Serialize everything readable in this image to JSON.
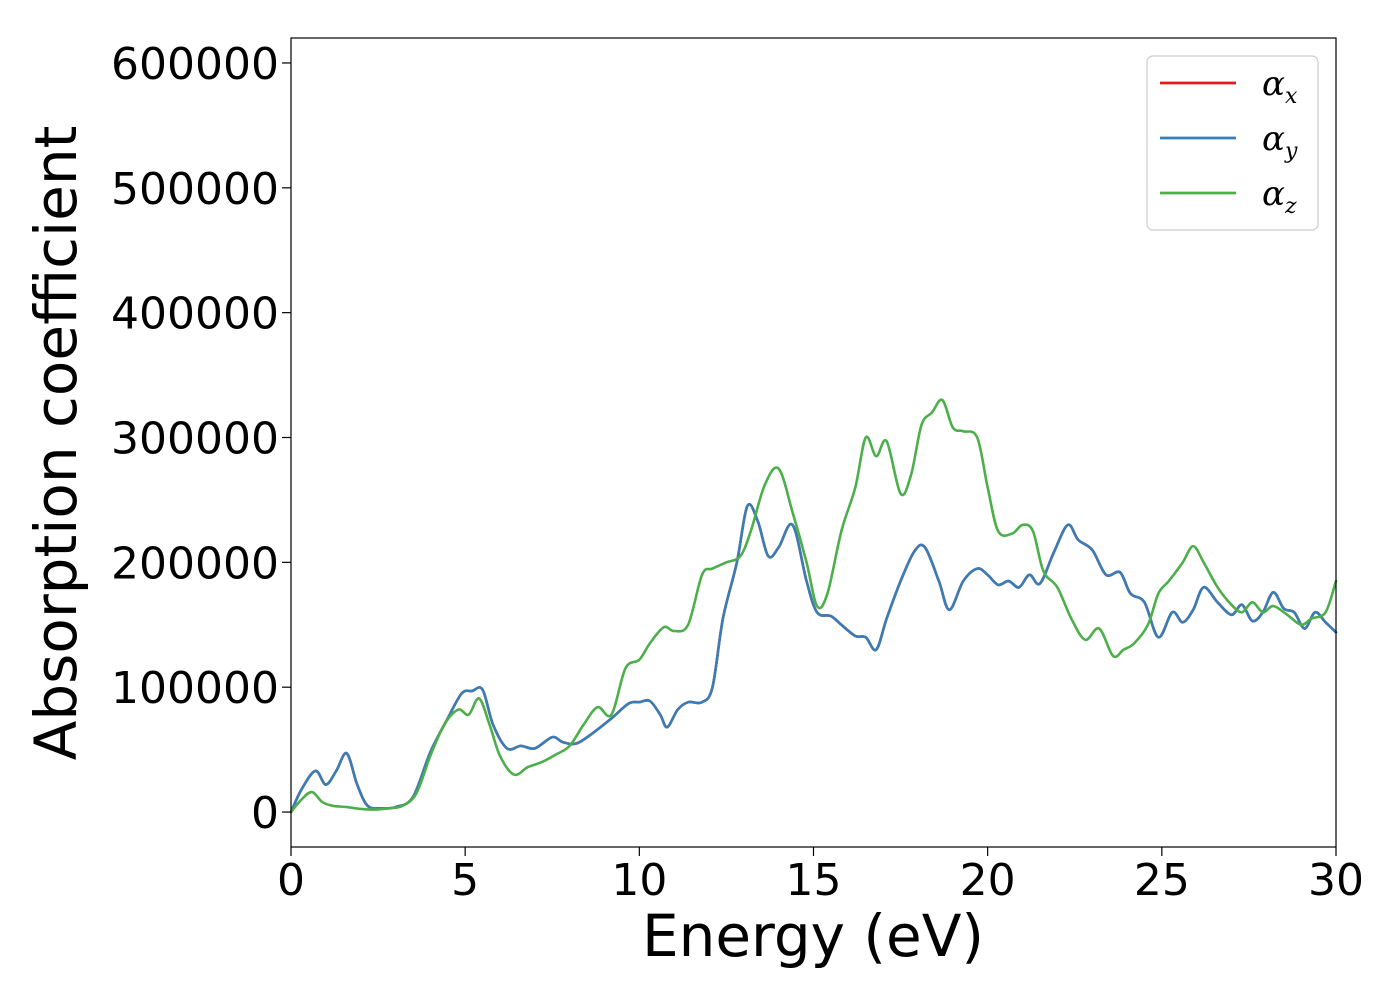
{
  "chart_data": {
    "type": "line",
    "title": "",
    "xlabel": "Energy (eV)",
    "ylabel": "Absorption coefficient",
    "xlim": [
      0,
      30
    ],
    "ylim": [
      -28000,
      620000
    ],
    "xticks": [
      0,
      5,
      10,
      15,
      20,
      25,
      30
    ],
    "xtick_labels": [
      "0",
      "5",
      "10",
      "15",
      "20",
      "25",
      "30"
    ],
    "yticks": [
      0,
      100000,
      200000,
      300000,
      400000,
      500000,
      600000
    ],
    "ytick_labels": [
      "0",
      "100000",
      "200000",
      "300000",
      "400000",
      "500000",
      "600000"
    ],
    "grid": false,
    "legend_position": "top-right",
    "series": [
      {
        "name": "α",
        "subscript": "x",
        "color": "#e41a1c",
        "x": [
          0,
          0.3,
          0.7,
          1.0,
          1.3,
          1.6,
          1.9,
          2.2,
          2.6,
          3.0,
          3.5,
          4.0,
          4.5,
          4.9,
          5.2,
          5.5,
          5.8,
          6.2,
          6.6,
          7.0,
          7.5,
          7.8,
          8.2,
          8.7,
          9.2,
          9.7,
          10.0,
          10.3,
          10.6,
          10.8,
          11.1,
          11.4,
          11.8,
          12.1,
          12.4,
          12.8,
          13.1,
          13.4,
          13.7,
          14.0,
          14.4,
          14.8,
          15.1,
          15.5,
          15.8,
          16.2,
          16.5,
          16.8,
          17.1,
          17.5,
          17.9,
          18.2,
          18.6,
          18.9,
          19.3,
          19.7,
          20.0,
          20.3,
          20.6,
          20.9,
          21.2,
          21.5,
          21.9,
          22.3,
          22.6,
          23.0,
          23.4,
          23.8,
          24.1,
          24.5,
          24.9,
          25.3,
          25.6,
          25.9,
          26.2,
          26.6,
          27.0,
          27.3,
          27.6,
          27.9,
          28.2,
          28.5,
          28.8,
          29.1,
          29.4,
          29.7,
          30.0
        ],
        "y": [
          0,
          18000,
          33000,
          22000,
          33000,
          47000,
          22000,
          5000,
          3000,
          4000,
          12000,
          48000,
          75000,
          95000,
          97000,
          98000,
          70000,
          51000,
          53000,
          51000,
          60000,
          56000,
          55000,
          64000,
          75000,
          87000,
          88000,
          89000,
          78000,
          68000,
          82000,
          88000,
          88000,
          100000,
          155000,
          200000,
          245000,
          233000,
          205000,
          212000,
          230000,
          185000,
          160000,
          157000,
          150000,
          141000,
          140000,
          130000,
          155000,
          185000,
          209000,
          212000,
          185000,
          162000,
          185000,
          195000,
          190000,
          182000,
          185000,
          180000,
          190000,
          183000,
          208000,
          230000,
          218000,
          210000,
          190000,
          192000,
          175000,
          168000,
          140000,
          160000,
          152000,
          162000,
          180000,
          168000,
          158000,
          166000,
          153000,
          160000,
          176000,
          163000,
          160000,
          147000,
          160000,
          152000,
          144000
        ]
      },
      {
        "name": "α",
        "subscript": "y",
        "color": "#377eb8",
        "x": [
          0,
          0.3,
          0.7,
          1.0,
          1.3,
          1.6,
          1.9,
          2.2,
          2.6,
          3.0,
          3.5,
          4.0,
          4.5,
          4.9,
          5.2,
          5.5,
          5.8,
          6.2,
          6.6,
          7.0,
          7.5,
          7.8,
          8.2,
          8.7,
          9.2,
          9.7,
          10.0,
          10.3,
          10.6,
          10.8,
          11.1,
          11.4,
          11.8,
          12.1,
          12.4,
          12.8,
          13.1,
          13.4,
          13.7,
          14.0,
          14.4,
          14.8,
          15.1,
          15.5,
          15.8,
          16.2,
          16.5,
          16.8,
          17.1,
          17.5,
          17.9,
          18.2,
          18.6,
          18.9,
          19.3,
          19.7,
          20.0,
          20.3,
          20.6,
          20.9,
          21.2,
          21.5,
          21.9,
          22.3,
          22.6,
          23.0,
          23.4,
          23.8,
          24.1,
          24.5,
          24.9,
          25.3,
          25.6,
          25.9,
          26.2,
          26.6,
          27.0,
          27.3,
          27.6,
          27.9,
          28.2,
          28.5,
          28.8,
          29.1,
          29.4,
          29.7,
          30.0
        ],
        "y": [
          0,
          18000,
          33000,
          22000,
          33000,
          47000,
          22000,
          5000,
          3000,
          4000,
          12000,
          48000,
          75000,
          95000,
          97000,
          98000,
          70000,
          51000,
          53000,
          51000,
          60000,
          56000,
          55000,
          64000,
          75000,
          87000,
          88000,
          89000,
          78000,
          68000,
          82000,
          88000,
          88000,
          100000,
          155000,
          200000,
          245000,
          233000,
          205000,
          212000,
          230000,
          185000,
          160000,
          157000,
          150000,
          141000,
          140000,
          130000,
          155000,
          185000,
          209000,
          212000,
          185000,
          162000,
          185000,
          195000,
          190000,
          182000,
          185000,
          180000,
          190000,
          183000,
          208000,
          230000,
          218000,
          210000,
          190000,
          192000,
          175000,
          168000,
          140000,
          160000,
          152000,
          162000,
          180000,
          168000,
          158000,
          166000,
          153000,
          160000,
          176000,
          163000,
          160000,
          147000,
          160000,
          152000,
          144000
        ]
      },
      {
        "name": "α",
        "subscript": "z",
        "color": "#4daf4a",
        "x": [
          0,
          0.3,
          0.6,
          0.9,
          1.2,
          1.6,
          2.0,
          2.4,
          2.8,
          3.2,
          3.6,
          4.0,
          4.4,
          4.8,
          5.1,
          5.4,
          5.7,
          6.0,
          6.4,
          6.8,
          7.2,
          7.6,
          8.0,
          8.4,
          8.8,
          9.2,
          9.6,
          10.0,
          10.3,
          10.7,
          11.0,
          11.4,
          11.8,
          12.1,
          12.5,
          12.9,
          13.2,
          13.6,
          14.0,
          14.4,
          14.8,
          15.1,
          15.4,
          15.8,
          16.2,
          16.5,
          16.8,
          17.1,
          17.5,
          17.8,
          18.1,
          18.4,
          18.7,
          19.0,
          19.3,
          19.7,
          20.0,
          20.3,
          20.7,
          21.0,
          21.3,
          21.6,
          22.0,
          22.4,
          22.8,
          23.2,
          23.6,
          23.9,
          24.2,
          24.6,
          24.9,
          25.2,
          25.6,
          25.9,
          26.2,
          26.6,
          27.0,
          27.3,
          27.6,
          27.9,
          28.2,
          28.6,
          29.0,
          29.3,
          29.7,
          30.0
        ],
        "y": [
          0,
          10000,
          16000,
          8000,
          5000,
          4000,
          2500,
          2000,
          3000,
          5000,
          15000,
          45000,
          70000,
          82000,
          78000,
          91000,
          70000,
          45000,
          30000,
          36000,
          40000,
          46000,
          53000,
          70000,
          84000,
          78000,
          115000,
          122000,
          135000,
          148000,
          145000,
          150000,
          190000,
          195000,
          200000,
          205000,
          225000,
          262000,
          275000,
          240000,
          200000,
          165000,
          175000,
          225000,
          260000,
          300000,
          285000,
          297000,
          255000,
          270000,
          310000,
          320000,
          330000,
          308000,
          305000,
          300000,
          260000,
          225000,
          223000,
          230000,
          225000,
          193000,
          180000,
          155000,
          138000,
          147000,
          125000,
          130000,
          135000,
          150000,
          175000,
          185000,
          200000,
          213000,
          200000,
          180000,
          166000,
          160000,
          168000,
          160000,
          165000,
          158000,
          150000,
          155000,
          160000,
          185000
        ]
      }
    ]
  }
}
